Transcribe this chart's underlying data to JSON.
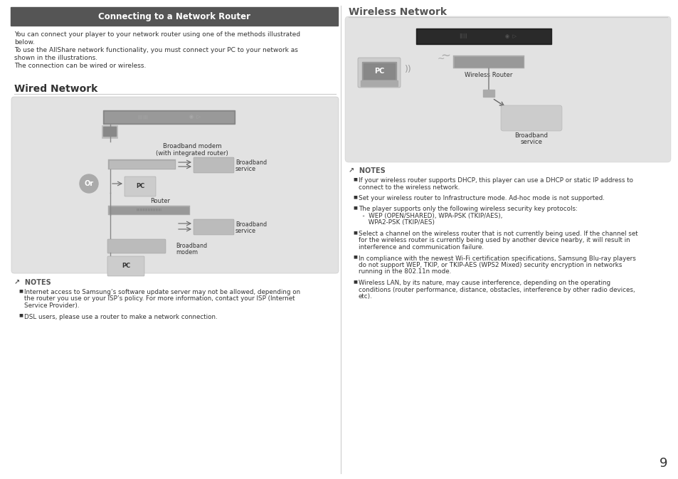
{
  "bg_color": "#ffffff",
  "header_bg": "#555555",
  "header_text": "Connecting to a Network Router",
  "header_text_color": "#ffffff",
  "section_left_title": "Wired Network",
  "section_right_title": "Wireless Network",
  "diagram_bg": "#e2e2e2",
  "body_text_color": "#333333",
  "divider_color": "#cccccc",
  "page_number": "9",
  "intro_lines": [
    "You can connect your player to your network router using one of the methods illustrated",
    "below.",
    "To use the AllShare network functionality, you must connect your PC to your network as",
    "shown in the illustrations.",
    "The connection can be wired or wireless."
  ],
  "notes_left_lines": [
    [
      "Internet access to Samsung’s software update server may not be allowed, depending on",
      "the router you use or your ISP’s policy. For more information, contact your ISP (Internet",
      "Service Provider)."
    ],
    [
      "DSL users, please use a router to make a network connection."
    ]
  ],
  "notes_right_lines": [
    [
      "If your wireless router supports DHCP, this player can use a DHCP or static IP address to",
      "connect to the wireless network."
    ],
    [
      "Set your wireless router to Infrastructure mode. Ad-hoc mode is not supported."
    ],
    [
      "The player supports only the following wireless security key protocols:",
      "  -  WEP (OPEN/SHARED), WPA-PSK (TKIP/AES),",
      "     WPA2-PSK (TKIP/AES)"
    ],
    [
      "Select a channel on the wireless router that is not currently being used. If the channel set",
      "for the wireless router is currently being used by another device nearby, it will result in",
      "interference and communication failure."
    ],
    [
      "In compliance with the newest Wi-Fi certification specifications, Samsung Blu-ray players",
      "do not support WEP, TKIP, or TKIP-AES (WPS2 Mixed) security encryption in networks",
      "running in the 802.11n mode."
    ],
    [
      "Wireless LAN, by its nature, may cause interference, depending on the operating",
      "conditions (router performance, distance, obstacles, interference by other radio devices,",
      "etc)."
    ]
  ]
}
